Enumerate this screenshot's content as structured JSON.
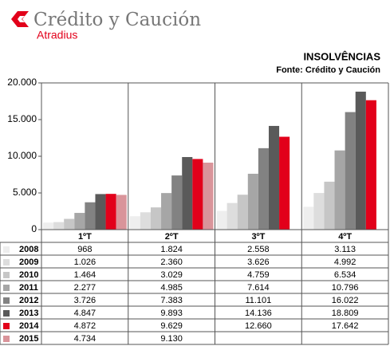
{
  "logo": {
    "name": "Crédito y Caución",
    "sub": "Atradius"
  },
  "chart_data": {
    "type": "bar",
    "title": "INSOLVÊNCIAS",
    "subtitle": "Fonte: Crédito y Caución",
    "categories": [
      "1ºT",
      "2ºT",
      "3ºT",
      "4ºT"
    ],
    "ylim": [
      0,
      20000
    ],
    "yticks": [
      0,
      {
        "value": 5000,
        "label": "5.000"
      },
      {
        "value": 10000,
        "label": "10.000"
      },
      {
        "value": 15000,
        "label": "15.000"
      },
      {
        "value": 20000,
        "label": "20.000"
      }
    ],
    "grid": false,
    "series": [
      {
        "name": "2008",
        "color": "#eeeeee",
        "values": [
          968,
          1824,
          2558,
          3113
        ],
        "value_labels": [
          "968",
          "1.824",
          "2.558",
          "3.113"
        ]
      },
      {
        "name": "2009",
        "color": "#dddddd",
        "values": [
          1026,
          2360,
          3626,
          4992
        ],
        "value_labels": [
          "1.026",
          "2.360",
          "3.626",
          "4.992"
        ]
      },
      {
        "name": "2010",
        "color": "#c6c6c6",
        "values": [
          1464,
          3029,
          4759,
          6534
        ],
        "value_labels": [
          "1.464",
          "3.029",
          "4.759",
          "6.534"
        ]
      },
      {
        "name": "2011",
        "color": "#a6a6a6",
        "values": [
          2277,
          4985,
          7614,
          10796
        ],
        "value_labels": [
          "2.277",
          "4.985",
          "7.614",
          "10.796"
        ]
      },
      {
        "name": "2012",
        "color": "#828282",
        "values": [
          3726,
          7383,
          11101,
          16022
        ],
        "value_labels": [
          "3.726",
          "7.383",
          "11.101",
          "16.022"
        ]
      },
      {
        "name": "2013",
        "color": "#5a5a5a",
        "values": [
          4847,
          9893,
          14136,
          18809
        ],
        "value_labels": [
          "4.847",
          "9.893",
          "14.136",
          "18.809"
        ]
      },
      {
        "name": "2014",
        "color": "#e2001a",
        "values": [
          4872,
          9629,
          12660,
          17642
        ],
        "value_labels": [
          "4.872",
          "9.629",
          "12.660",
          "17.642"
        ]
      },
      {
        "name": "2015",
        "color": "#d9949a",
        "values": [
          4734,
          9130,
          null,
          null
        ],
        "value_labels": [
          "4.734",
          "9.130",
          null,
          null
        ]
      }
    ]
  }
}
